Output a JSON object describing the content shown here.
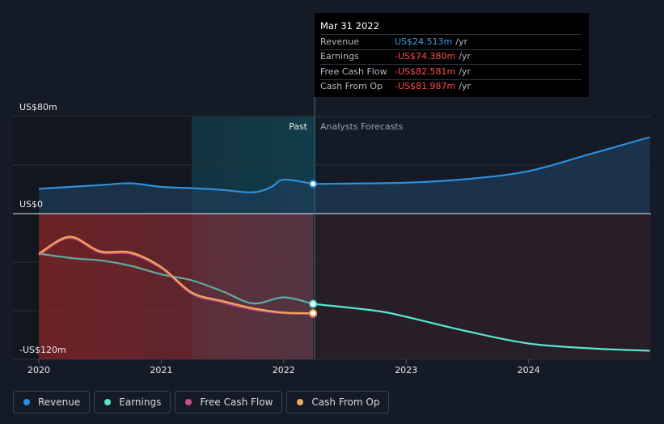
{
  "chart_data": {
    "type": "line",
    "ylabel_top": "US$80m",
    "ylabel_zero": "US$0",
    "ylabel_bottom": "-US$120m",
    "ylim": [
      -120,
      80
    ],
    "x_ticks": [
      "2020",
      "2021",
      "2022",
      "2023",
      "2024"
    ],
    "past_label": "Past",
    "forecast_label": "Analysts Forecasts",
    "marker_x": 2022.24,
    "series": [
      {
        "name": "Revenue",
        "color": "#2d8fdc",
        "points": [
          [
            2020.0,
            20.5
          ],
          [
            2020.5,
            23.5
          ],
          [
            2020.75,
            25
          ],
          [
            2021.0,
            22
          ],
          [
            2021.25,
            21
          ],
          [
            2021.5,
            19.5
          ],
          [
            2021.75,
            17.5
          ],
          [
            2021.9,
            22
          ],
          [
            2022.0,
            28
          ],
          [
            2022.24,
            24.5
          ]
        ],
        "forecast": [
          [
            2022.24,
            24.5
          ],
          [
            2023.0,
            25.5
          ],
          [
            2023.5,
            28.5
          ],
          [
            2024.0,
            35
          ],
          [
            2024.5,
            49
          ],
          [
            2024.99,
            63
          ]
        ]
      },
      {
        "name": "Earnings",
        "color": "#58e6cf",
        "points": [
          [
            2020.0,
            -33
          ],
          [
            2020.3,
            -37
          ],
          [
            2020.5,
            -38.5
          ],
          [
            2020.75,
            -43
          ],
          [
            2021.0,
            -50
          ],
          [
            2021.25,
            -55
          ],
          [
            2021.5,
            -64
          ],
          [
            2021.75,
            -74
          ],
          [
            2022.0,
            -69
          ],
          [
            2022.24,
            -74.4
          ]
        ],
        "forecast": [
          [
            2022.24,
            -74.4
          ],
          [
            2022.75,
            -80
          ],
          [
            2023.0,
            -85
          ],
          [
            2023.5,
            -97
          ],
          [
            2024.0,
            -107
          ],
          [
            2024.5,
            -111
          ],
          [
            2024.99,
            -113
          ]
        ]
      },
      {
        "name": "Free Cash Flow",
        "color": "#cc4b8e",
        "points": [
          [
            2020.0,
            -34
          ],
          [
            2020.25,
            -20
          ],
          [
            2020.5,
            -32
          ],
          [
            2020.75,
            -33
          ],
          [
            2021.0,
            -45
          ],
          [
            2021.25,
            -66
          ],
          [
            2021.5,
            -73
          ],
          [
            2021.75,
            -79
          ],
          [
            2022.0,
            -82
          ],
          [
            2022.24,
            -82.6
          ]
        ]
      },
      {
        "name": "Cash From Op",
        "color": "#f0a857",
        "points": [
          [
            2020.0,
            -33
          ],
          [
            2020.25,
            -19
          ],
          [
            2020.5,
            -31
          ],
          [
            2020.75,
            -32
          ],
          [
            2021.0,
            -44
          ],
          [
            2021.25,
            -65
          ],
          [
            2021.5,
            -72
          ],
          [
            2021.75,
            -78
          ],
          [
            2022.0,
            -81.5
          ],
          [
            2022.24,
            -82
          ]
        ]
      }
    ]
  },
  "tooltip": {
    "date": "Mar 31 2022",
    "rows": [
      {
        "label": "Revenue",
        "value": "US$24.513m",
        "unit": "/yr"
      },
      {
        "label": "Earnings",
        "value": "-US$74.380m",
        "unit": "/yr"
      },
      {
        "label": "Free Cash Flow",
        "value": "-US$82.581m",
        "unit": "/yr"
      },
      {
        "label": "Cash From Op",
        "value": "-US$81.987m",
        "unit": "/yr"
      }
    ]
  },
  "legend": [
    {
      "label": "Revenue",
      "color": "#2d8fdc"
    },
    {
      "label": "Earnings",
      "color": "#58e6cf"
    },
    {
      "label": "Free Cash Flow",
      "color": "#cc4b8e"
    },
    {
      "label": "Cash From Op",
      "color": "#f0a857"
    }
  ]
}
